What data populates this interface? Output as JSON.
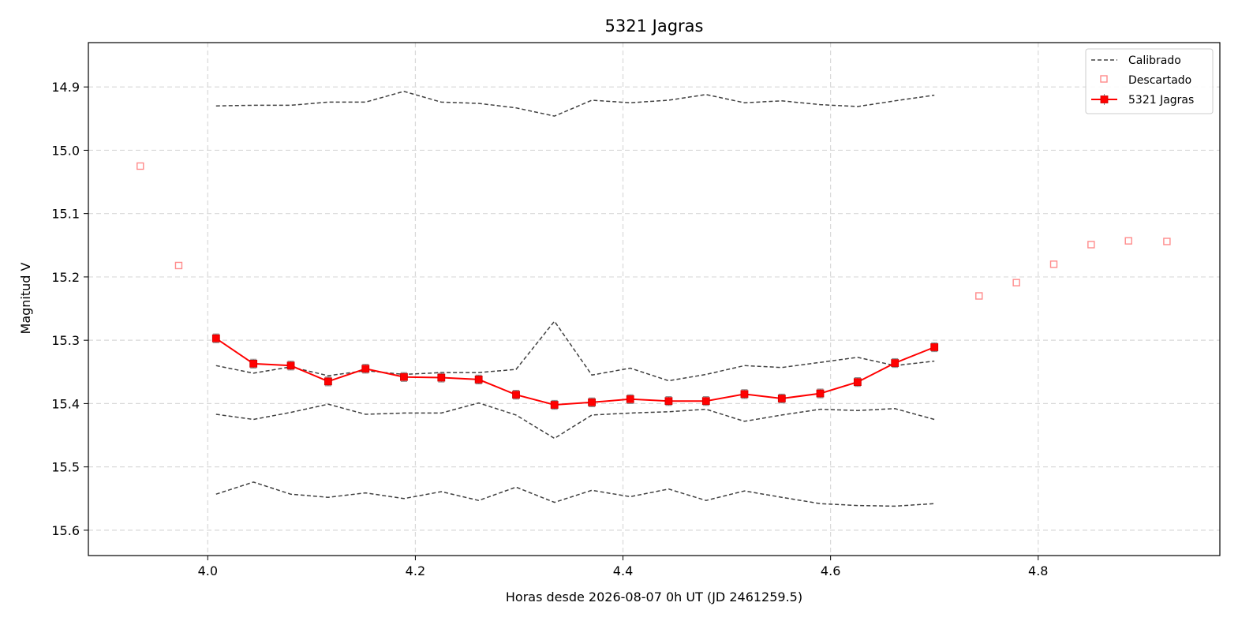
{
  "chart_data": {
    "type": "line",
    "title": "5321 Jagras",
    "xlabel": "Horas desde 2026-08-07 0h UT (JD 2461259.5)",
    "ylabel": "Magnitud V",
    "xlim": [
      3.885,
      4.975
    ],
    "ylim": [
      15.64,
      14.83
    ],
    "y_inverted": true,
    "grid": true,
    "x_ticks": [
      4.0,
      4.2,
      4.4,
      4.6,
      4.8
    ],
    "x_tick_labels": [
      "4.0",
      "4.2",
      "4.4",
      "4.6",
      "4.8"
    ],
    "y_ticks": [
      14.9,
      15.0,
      15.1,
      15.2,
      15.3,
      15.4,
      15.5,
      15.6
    ],
    "y_tick_labels": [
      "14.9",
      "15.0",
      "15.1",
      "15.2",
      "15.3",
      "15.4",
      "15.5",
      "15.6"
    ],
    "legend": {
      "position": "top-right",
      "entries": [
        "Calibrado",
        "Descartado",
        "5321 Jagras"
      ]
    },
    "x": [
      4.008,
      4.044,
      4.08,
      4.116,
      4.152,
      4.189,
      4.225,
      4.261,
      4.297,
      4.334,
      4.37,
      4.407,
      4.444,
      4.48,
      4.517,
      4.553,
      4.59,
      4.626,
      4.662,
      4.7
    ],
    "series": [
      {
        "name": "5321 Jagras",
        "color": "#ff0000",
        "style": "line-markers-errorbars",
        "values": [
          15.297,
          15.337,
          15.34,
          15.365,
          15.345,
          15.358,
          15.359,
          15.362,
          15.386,
          15.402,
          15.398,
          15.393,
          15.396,
          15.396,
          15.385,
          15.392,
          15.384,
          15.366,
          15.336,
          15.311
        ],
        "error": 0.007
      },
      {
        "name": "Calibrado",
        "color": "#404040",
        "style": "dashed",
        "values": [
          14.93,
          14.929,
          14.929,
          14.924,
          14.924,
          14.907,
          14.924,
          14.926,
          14.933,
          14.946,
          14.921,
          14.925,
          14.921,
          14.912,
          14.925,
          14.922,
          14.928,
          14.931,
          14.922,
          14.913
        ]
      },
      {
        "name": "Calibrado",
        "color": "#404040",
        "style": "dashed",
        "values": [
          15.34,
          15.352,
          15.342,
          15.356,
          15.348,
          15.354,
          15.351,
          15.351,
          15.346,
          15.27,
          15.355,
          15.344,
          15.364,
          15.354,
          15.34,
          15.343,
          15.335,
          15.327,
          15.34,
          15.333
        ]
      },
      {
        "name": "Calibrado",
        "color": "#404040",
        "style": "dashed",
        "values": [
          15.417,
          15.425,
          15.414,
          15.401,
          15.417,
          15.415,
          15.415,
          15.399,
          15.418,
          15.455,
          15.418,
          15.415,
          15.413,
          15.409,
          15.428,
          15.418,
          15.409,
          15.411,
          15.408,
          15.425
        ]
      },
      {
        "name": "Calibrado",
        "color": "#404040",
        "style": "dashed",
        "values": [
          15.543,
          15.524,
          15.543,
          15.548,
          15.541,
          15.55,
          15.539,
          15.553,
          15.532,
          15.556,
          15.537,
          15.547,
          15.535,
          15.553,
          15.538,
          15.548,
          15.558,
          15.561,
          15.562,
          15.558
        ]
      },
      {
        "name": "Descartado",
        "color": "#ff8a8a",
        "style": "hollow-square-markers",
        "x": [
          3.935,
          3.972,
          4.743,
          4.779,
          4.815,
          4.851,
          4.887,
          4.924
        ],
        "values": [
          15.025,
          15.182,
          15.23,
          15.209,
          15.18,
          15.149,
          15.143,
          15.144
        ]
      }
    ]
  }
}
